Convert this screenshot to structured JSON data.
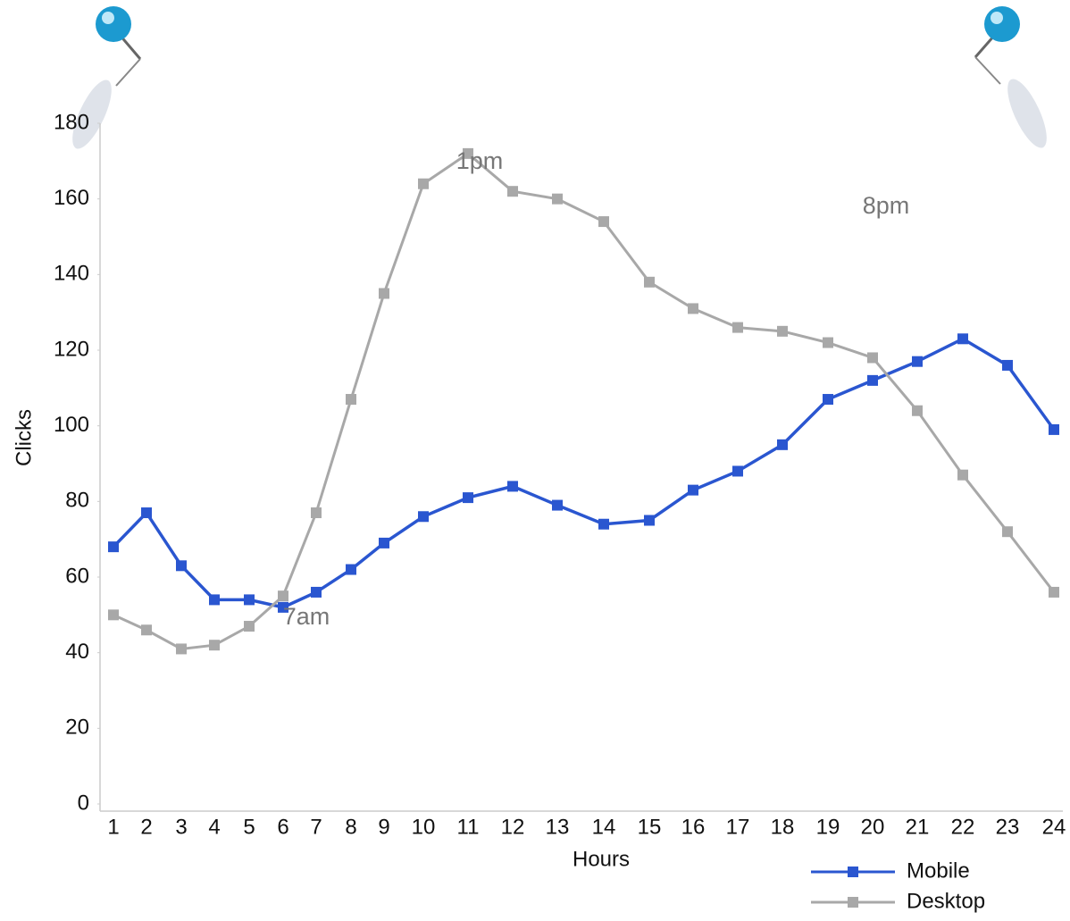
{
  "chart_data": {
    "type": "line",
    "y_label": "Clicks",
    "x_label": "Hours",
    "categories": [
      "1",
      "2",
      "3",
      "4",
      "5",
      "6",
      "7",
      "8",
      "9",
      "10",
      "11",
      "12",
      "13",
      "14",
      "15",
      "16",
      "17",
      "18",
      "19",
      "20",
      "21",
      "22",
      "23",
      "24"
    ],
    "series": [
      {
        "name": "Mobile",
        "color": "#2a56d0",
        "values": [
          68,
          77,
          63,
          54,
          54,
          52,
          56,
          62,
          69,
          76,
          81,
          84,
          79,
          74,
          75,
          83,
          88,
          95,
          107,
          112,
          117,
          123,
          116,
          99
        ]
      },
      {
        "name": "Desktop",
        "color": "#a8a8a8",
        "values": [
          50,
          46,
          41,
          42,
          47,
          55,
          77,
          107,
          135,
          164,
          172,
          162,
          160,
          154,
          138,
          131,
          126,
          125,
          122,
          118,
          104,
          87,
          72,
          56
        ]
      }
    ],
    "annotations": [
      "1pm",
      "8pm",
      "7am"
    ],
    "ylim": [
      0,
      180
    ],
    "yticks": [
      0,
      20,
      40,
      60,
      80,
      100,
      120,
      140,
      160,
      180
    ],
    "legend": "bottom-right"
  }
}
